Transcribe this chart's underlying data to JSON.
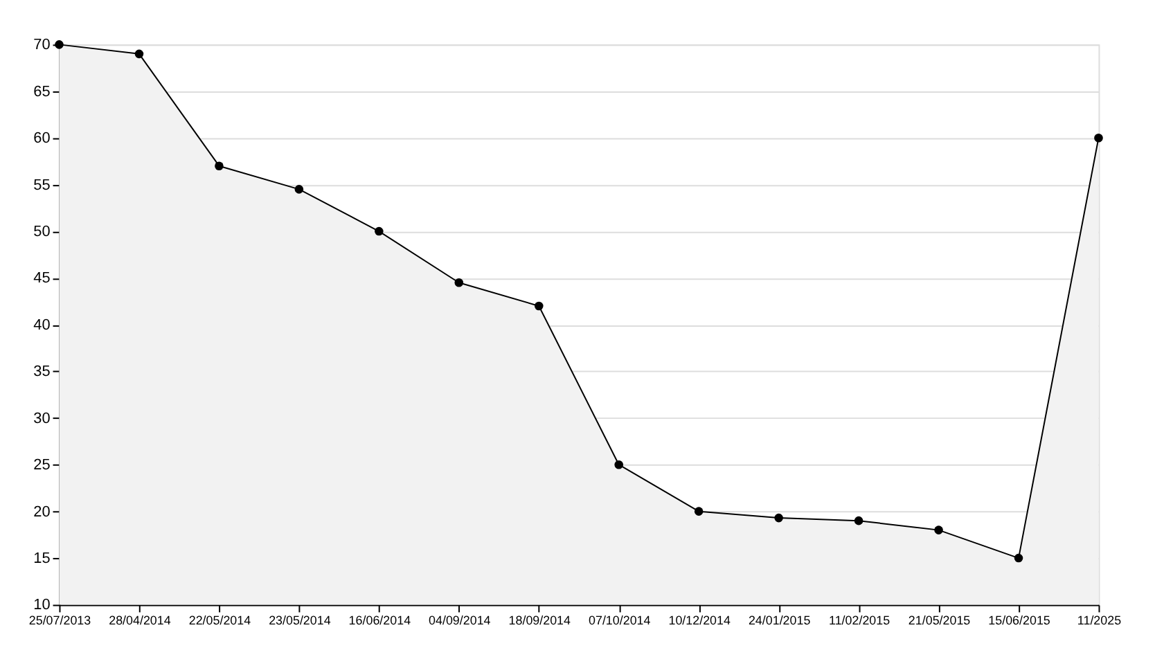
{
  "chart_data": {
    "type": "area",
    "categories": [
      "25/07/2013",
      "28/04/2014",
      "22/05/2014",
      "23/05/2014",
      "16/06/2014",
      "04/09/2014",
      "18/09/2014",
      "07/10/2014",
      "10/12/2014",
      "24/01/2015",
      "11/02/2015",
      "21/05/2015",
      "15/06/2015",
      "11/2025"
    ],
    "series": [
      {
        "color": "#000000",
        "values": [
          70,
          69,
          57,
          54.5,
          50,
          44.5,
          42,
          25,
          20,
          19.3,
          19,
          18,
          15,
          60
        ]
      }
    ],
    "ylim": [
      10,
      70
    ],
    "yticks": [
      10,
      15,
      20,
      25,
      30,
      35,
      40,
      45,
      50,
      55,
      60,
      65,
      70
    ],
    "grid": "y",
    "marker": "circle",
    "line_style": "solid"
  }
}
